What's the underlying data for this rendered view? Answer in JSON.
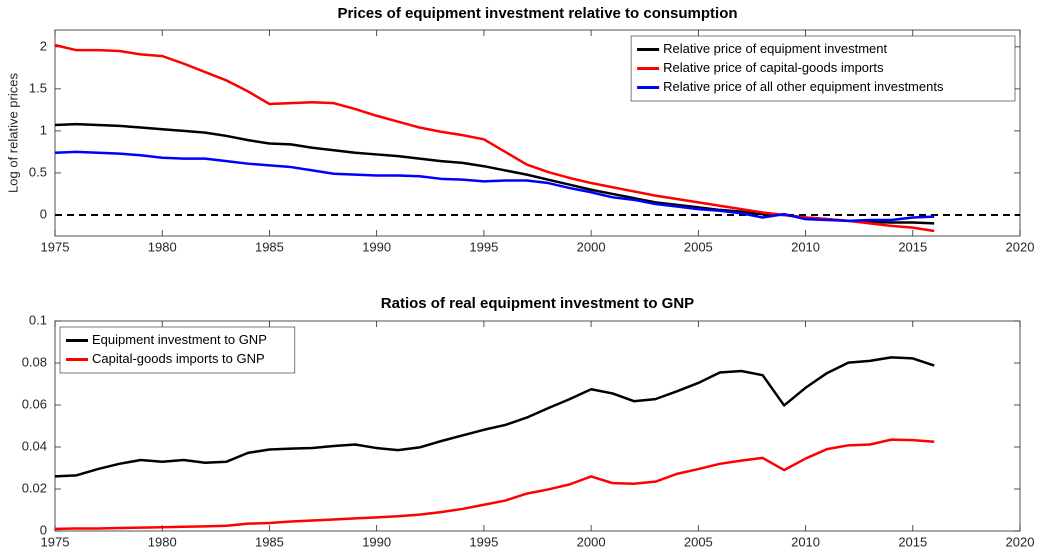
{
  "chart_data": [
    {
      "type": "line",
      "title": "Prices of equipment investment relative to consumption",
      "y_label": "Log of relative prices",
      "x": [
        1975,
        1976,
        1977,
        1978,
        1979,
        1980,
        1981,
        1982,
        1983,
        1984,
        1985,
        1986,
        1987,
        1988,
        1989,
        1990,
        1991,
        1992,
        1993,
        1994,
        1995,
        1996,
        1997,
        1998,
        1999,
        2000,
        2001,
        2002,
        2003,
        2004,
        2005,
        2006,
        2007,
        2008,
        2009,
        2010,
        2011,
        2012,
        2013,
        2014,
        2015,
        2016
      ],
      "series": [
        {
          "name": "Relative price of equipment investment",
          "color": "#000000",
          "values": [
            1.07,
            1.08,
            1.07,
            1.06,
            1.04,
            1.02,
            1.0,
            0.98,
            0.94,
            0.89,
            0.85,
            0.84,
            0.8,
            0.77,
            0.74,
            0.72,
            0.7,
            0.67,
            0.64,
            0.62,
            0.58,
            0.53,
            0.48,
            0.42,
            0.36,
            0.3,
            0.25,
            0.2,
            0.15,
            0.12,
            0.09,
            0.06,
            0.04,
            0.01,
            0,
            -0.03,
            -0.05,
            -0.07,
            -0.08,
            -0.09,
            -0.09,
            -0.1
          ]
        },
        {
          "name": "Relative price of capital-goods imports",
          "color": "#ff0000",
          "values": [
            2.02,
            1.96,
            1.96,
            1.95,
            1.91,
            1.89,
            1.8,
            1.7,
            1.6,
            1.47,
            1.32,
            1.33,
            1.34,
            1.33,
            1.26,
            1.18,
            1.11,
            1.04,
            0.99,
            0.95,
            0.9,
            0.75,
            0.6,
            0.51,
            0.44,
            0.38,
            0.33,
            0.28,
            0.23,
            0.19,
            0.15,
            0.11,
            0.07,
            0.03,
            0,
            -0.03,
            -0.05,
            -0.07,
            -0.1,
            -0.13,
            -0.15,
            -0.19
          ]
        },
        {
          "name": "Relative price of all other equipment investments",
          "color": "#0000ff",
          "values": [
            0.74,
            0.75,
            0.74,
            0.73,
            0.71,
            0.68,
            0.67,
            0.67,
            0.64,
            0.61,
            0.59,
            0.57,
            0.53,
            0.49,
            0.48,
            0.47,
            0.47,
            0.46,
            0.43,
            0.42,
            0.4,
            0.41,
            0.41,
            0.38,
            0.32,
            0.27,
            0.21,
            0.18,
            0.13,
            0.1,
            0.07,
            0.05,
            0.02,
            -0.03,
            0.01,
            -0.05,
            -0.06,
            -0.07,
            -0.06,
            -0.06,
            -0.03,
            -0.02
          ]
        }
      ],
      "reference_line": 0,
      "xlim": [
        1975,
        2020
      ],
      "xticks": [
        1975,
        1980,
        1985,
        1990,
        1995,
        2000,
        2005,
        2010,
        2015,
        2020
      ],
      "ylim": [
        -0.25,
        2.2
      ],
      "yticks": [
        0,
        0.5,
        1,
        1.5,
        2
      ],
      "legend": "upper right"
    },
    {
      "type": "line",
      "title": "Ratios of real equipment investment to GNP",
      "x": [
        1975,
        1976,
        1977,
        1978,
        1979,
        1980,
        1981,
        1982,
        1983,
        1984,
        1985,
        1986,
        1987,
        1988,
        1989,
        1990,
        1991,
        1992,
        1993,
        1994,
        1995,
        1996,
        1997,
        1998,
        1999,
        2000,
        2001,
        2002,
        2003,
        2004,
        2005,
        2006,
        2007,
        2008,
        2009,
        2010,
        2011,
        2012,
        2013,
        2014,
        2015,
        2016
      ],
      "series": [
        {
          "name": "Equipment investment to GNP",
          "color": "#000000",
          "values": [
            0.026,
            0.0265,
            0.0295,
            0.032,
            0.0338,
            0.033,
            0.0338,
            0.0325,
            0.033,
            0.0372,
            0.0388,
            0.0392,
            0.0395,
            0.0405,
            0.0412,
            0.0395,
            0.0385,
            0.0398,
            0.0428,
            0.0455,
            0.0482,
            0.0505,
            0.054,
            0.0585,
            0.0628,
            0.0675,
            0.0655,
            0.0618,
            0.0628,
            0.0665,
            0.0705,
            0.0755,
            0.0762,
            0.0742,
            0.0598,
            0.0682,
            0.0752,
            0.0802,
            0.081,
            0.0827,
            0.0822,
            0.0788
          ]
        },
        {
          "name": "Capital-goods imports to GNP",
          "color": "#ff0000",
          "values": [
            0.001,
            0.0012,
            0.0012,
            0.0014,
            0.0016,
            0.0018,
            0.002,
            0.0022,
            0.0025,
            0.0035,
            0.0038,
            0.0045,
            0.005,
            0.0055,
            0.006,
            0.0065,
            0.007,
            0.0078,
            0.009,
            0.0105,
            0.0125,
            0.0145,
            0.0178,
            0.0198,
            0.0222,
            0.026,
            0.0228,
            0.0225,
            0.0235,
            0.0272,
            0.0295,
            0.032,
            0.0335,
            0.0348,
            0.029,
            0.0345,
            0.039,
            0.0408,
            0.0412,
            0.0435,
            0.0433,
            0.0425
          ]
        }
      ],
      "xlim": [
        1975,
        2020
      ],
      "xticks": [
        1975,
        1980,
        1985,
        1990,
        1995,
        2000,
        2005,
        2010,
        2015,
        2020
      ],
      "ylim": [
        0,
        0.1
      ],
      "yticks": [
        0,
        0.02,
        0.04,
        0.06,
        0.08,
        0.1
      ],
      "legend": "upper left"
    }
  ]
}
